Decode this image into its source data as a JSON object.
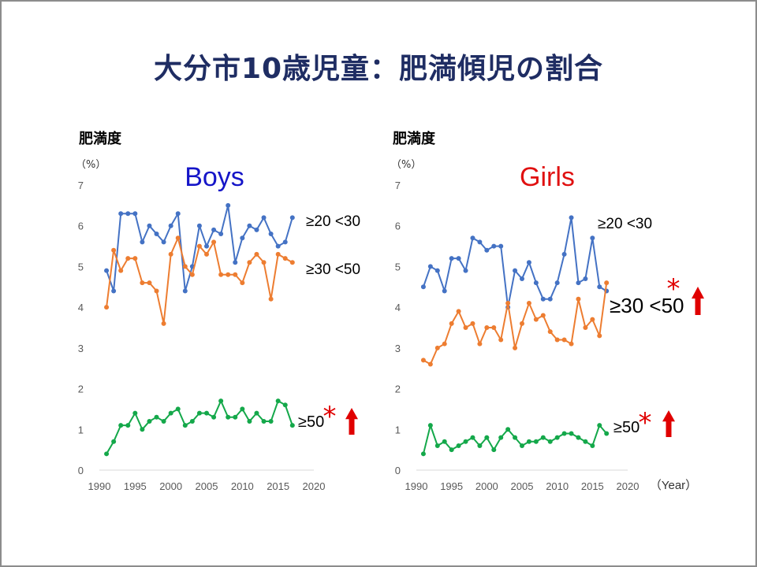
{
  "title": "大分市10歳児童：肥満傾児の割合",
  "x_unit_label": "（Year）",
  "colors": {
    "title": "#1f2d63",
    "boys": "#1515c8",
    "girls": "#e01010",
    "series_20_30": "#4472c4",
    "series_30_50": "#ed7d31",
    "series_50": "#14a84a",
    "accent": "#e00000"
  },
  "chart_data": [
    {
      "type": "line",
      "title": "Boys",
      "ylabel": "肥満度",
      "yunit": "（%）",
      "xlabel": "",
      "xlim": [
        1990,
        2020
      ],
      "ylim": [
        0,
        7
      ],
      "xticks": [
        1990,
        1995,
        2000,
        2005,
        2010,
        2015,
        2020
      ],
      "yticks": [
        0,
        1,
        2,
        3,
        4,
        5,
        6,
        7
      ],
      "x": [
        1991,
        1992,
        1993,
        1994,
        1995,
        1996,
        1997,
        1998,
        1999,
        2000,
        2001,
        2002,
        2003,
        2004,
        2005,
        2006,
        2007,
        2008,
        2009,
        2010,
        2011,
        2012,
        2013,
        2014,
        2015,
        2016,
        2017
      ],
      "series": [
        {
          "name": "≥20 <30",
          "values": [
            4.9,
            4.4,
            6.3,
            6.3,
            6.3,
            5.6,
            6.0,
            5.8,
            5.6,
            6.0,
            6.3,
            4.4,
            5.0,
            6.0,
            5.5,
            5.9,
            5.8,
            6.5,
            5.1,
            5.7,
            6.0,
            5.9,
            6.2,
            5.8,
            5.5,
            5.6,
            6.2
          ]
        },
        {
          "name": "≥30 <50",
          "values": [
            4.0,
            5.4,
            4.9,
            5.2,
            5.2,
            4.6,
            4.6,
            4.4,
            3.6,
            5.3,
            5.7,
            5.0,
            4.8,
            5.5,
            5.3,
            5.6,
            4.8,
            4.8,
            4.8,
            4.6,
            5.1,
            5.3,
            5.1,
            4.2,
            5.3,
            5.2,
            5.1
          ]
        },
        {
          "name": "≥50",
          "values": [
            0.4,
            0.7,
            1.1,
            1.1,
            1.4,
            1.0,
            1.2,
            1.3,
            1.2,
            1.4,
            1.5,
            1.1,
            1.2,
            1.4,
            1.4,
            1.3,
            1.7,
            1.3,
            1.3,
            1.5,
            1.2,
            1.4,
            1.2,
            1.2,
            1.7,
            1.6,
            1.1
          ]
        }
      ],
      "annotations": [
        {
          "series": "≥50",
          "star": "*",
          "arrow": "up"
        }
      ]
    },
    {
      "type": "line",
      "title": "Girls",
      "ylabel": "肥満度",
      "yunit": "（%）",
      "xlabel": "Year",
      "xlim": [
        1990,
        2020
      ],
      "ylim": [
        0,
        7
      ],
      "xticks": [
        1990,
        1995,
        2000,
        2005,
        2010,
        2015,
        2020
      ],
      "yticks": [
        0,
        1,
        2,
        3,
        4,
        5,
        6,
        7
      ],
      "x": [
        1991,
        1992,
        1993,
        1994,
        1995,
        1996,
        1997,
        1998,
        1999,
        2000,
        2001,
        2002,
        2003,
        2004,
        2005,
        2006,
        2007,
        2008,
        2009,
        2010,
        2011,
        2012,
        2013,
        2014,
        2015,
        2016,
        2017
      ],
      "series": [
        {
          "name": "≥20 <30",
          "values": [
            4.5,
            5.0,
            4.9,
            4.4,
            5.2,
            5.2,
            4.9,
            5.7,
            5.6,
            5.4,
            5.5,
            5.5,
            4.0,
            4.9,
            4.7,
            5.1,
            4.6,
            4.2,
            4.2,
            4.6,
            5.3,
            6.2,
            4.6,
            4.7,
            5.7,
            4.5,
            4.4
          ]
        },
        {
          "name": "≥30 <50",
          "values": [
            2.7,
            2.6,
            3.0,
            3.1,
            3.6,
            3.9,
            3.5,
            3.6,
            3.1,
            3.5,
            3.5,
            3.2,
            4.1,
            3.0,
            3.6,
            4.1,
            3.7,
            3.8,
            3.4,
            3.2,
            3.2,
            3.1,
            4.2,
            3.5,
            3.7,
            3.3,
            4.6
          ]
        },
        {
          "name": "≥50",
          "values": [
            0.4,
            1.1,
            0.6,
            0.7,
            0.5,
            0.6,
            0.7,
            0.8,
            0.6,
            0.8,
            0.5,
            0.8,
            1.0,
            0.8,
            0.6,
            0.7,
            0.7,
            0.8,
            0.7,
            0.8,
            0.9,
            0.9,
            0.8,
            0.7,
            0.6,
            1.1,
            0.9
          ]
        }
      ],
      "annotations": [
        {
          "series": "≥30 <50",
          "star": "*",
          "arrow": "up"
        },
        {
          "series": "≥50",
          "star": "*",
          "arrow": "up"
        }
      ]
    }
  ]
}
